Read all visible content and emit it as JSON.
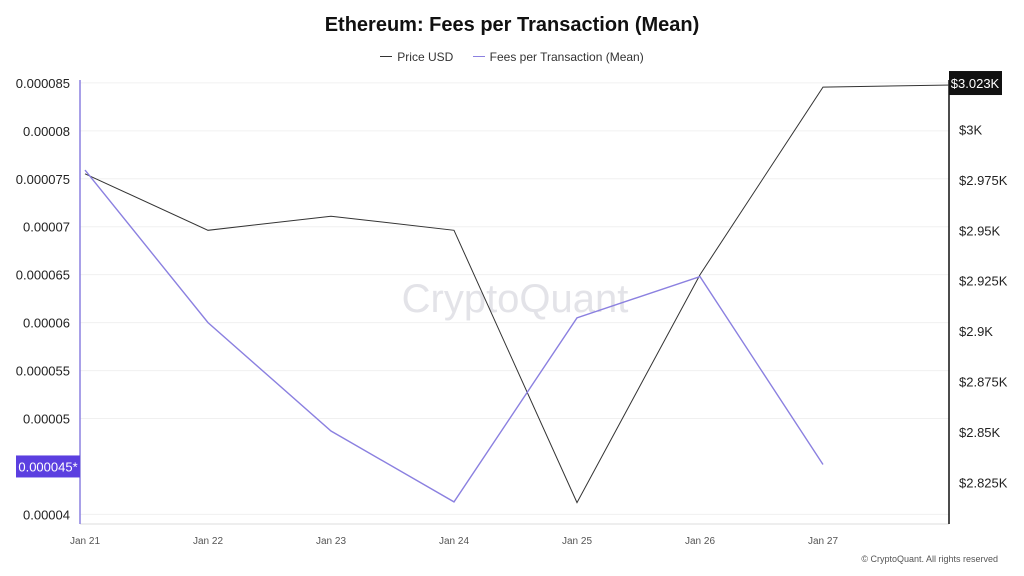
{
  "chart_data": {
    "type": "line",
    "title": "Ethereum: Fees per Transaction (Mean)",
    "categories": [
      "Jan 21",
      "Jan 22",
      "Jan 23",
      "Jan 24",
      "Jan 25",
      "Jan 26",
      "Jan 27"
    ],
    "series": [
      {
        "name": "Price USD",
        "axis": "right",
        "color": "#333333",
        "x": [
          0,
          1,
          2,
          3,
          4,
          5,
          6,
          7.05
        ],
        "values": [
          2978,
          2950,
          2957,
          2950,
          2815,
          2928,
          3021,
          3022
        ]
      },
      {
        "name": "Fees per Transaction (Mean)",
        "axis": "left",
        "color": "#8b80e0",
        "x": [
          0,
          1,
          2,
          3,
          4,
          5,
          6
        ],
        "values": [
          7.59e-05,
          6e-05,
          4.87e-05,
          4.13e-05,
          6.05e-05,
          6.48e-05,
          4.52e-05
        ]
      }
    ],
    "y_left": {
      "ticks": [
        "0.000085",
        "0.00008",
        "0.000075",
        "0.00007",
        "0.000065",
        "0.00006",
        "0.000055",
        "0.00005",
        "0.00004"
      ],
      "tick_values": [
        8.5e-05,
        8e-05,
        7.5e-05,
        7e-05,
        6.5e-05,
        6e-05,
        5.5e-05,
        5e-05,
        4e-05
      ],
      "min": 3.9e-05,
      "max": 8.53e-05,
      "highlight_label": "0.000045*",
      "highlight_value": 4.5e-05
    },
    "y_right": {
      "ticks": [
        "$3K",
        "$2.975K",
        "$2.95K",
        "$2.925K",
        "$2.9K",
        "$2.875K",
        "$2.85K",
        "$2.825K"
      ],
      "tick_values": [
        3000,
        2975,
        2950,
        2925,
        2900,
        2875,
        2850,
        2825
      ],
      "min": 2804.4,
      "max": 3024.5,
      "highlight_label": "$3.023K",
      "highlight_value": 3023
    },
    "watermark": "CryptoQuant",
    "grid": true
  },
  "footer": "© CryptoQuant. All rights reserved",
  "colors": {
    "accent": "#5b3fe0",
    "price": "#333333",
    "fees": "#8b80e0",
    "grid": "#f0f0f0"
  }
}
